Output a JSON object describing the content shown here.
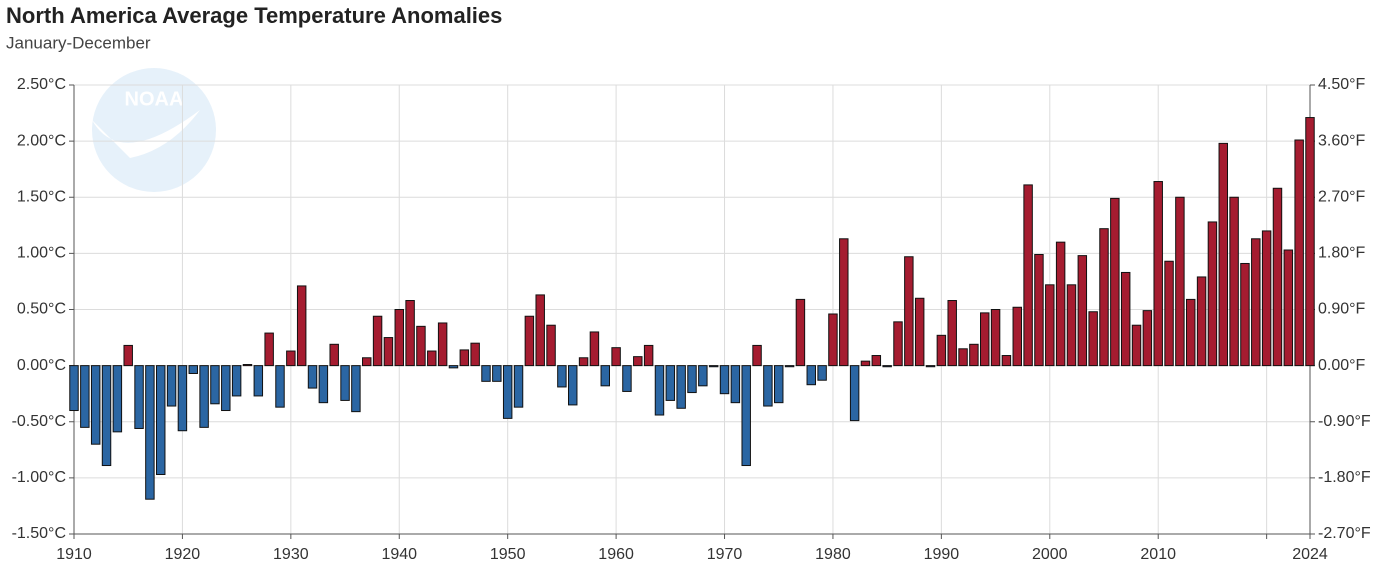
{
  "chart_data": {
    "type": "bar",
    "title": "North America Average Temperature Anomalies",
    "subtitle": "January-December",
    "logo_text": "NOAA",
    "x": [
      1910,
      1911,
      1912,
      1913,
      1914,
      1915,
      1916,
      1917,
      1918,
      1919,
      1920,
      1921,
      1922,
      1923,
      1924,
      1925,
      1926,
      1927,
      1928,
      1929,
      1930,
      1931,
      1932,
      1933,
      1934,
      1935,
      1936,
      1937,
      1938,
      1939,
      1940,
      1941,
      1942,
      1943,
      1944,
      1945,
      1946,
      1947,
      1948,
      1949,
      1950,
      1951,
      1952,
      1953,
      1954,
      1955,
      1956,
      1957,
      1958,
      1959,
      1960,
      1961,
      1962,
      1963,
      1964,
      1965,
      1966,
      1967,
      1968,
      1969,
      1970,
      1971,
      1972,
      1973,
      1974,
      1975,
      1976,
      1977,
      1978,
      1979,
      1980,
      1981,
      1982,
      1983,
      1984,
      1985,
      1986,
      1987,
      1988,
      1989,
      1990,
      1991,
      1992,
      1993,
      1994,
      1995,
      1996,
      1997,
      1998,
      1999,
      2000,
      2001,
      2002,
      2003,
      2004,
      2005,
      2006,
      2007,
      2008,
      2009,
      2010,
      2011,
      2012,
      2013,
      2014,
      2015,
      2016,
      2017,
      2018,
      2019,
      2020,
      2021,
      2022,
      2023,
      2024
    ],
    "values": [
      -0.4,
      -0.55,
      -0.7,
      -0.89,
      -0.59,
      0.18,
      -0.56,
      -1.19,
      -0.97,
      -0.36,
      -0.58,
      -0.07,
      -0.55,
      -0.34,
      -0.4,
      -0.27,
      0.01,
      -0.27,
      0.29,
      -0.37,
      0.13,
      0.71,
      -0.2,
      -0.33,
      0.19,
      -0.31,
      -0.41,
      0.07,
      0.44,
      0.25,
      0.5,
      0.58,
      0.35,
      0.13,
      0.38,
      -0.02,
      0.14,
      0.2,
      -0.14,
      -0.14,
      -0.47,
      -0.37,
      0.44,
      0.63,
      0.36,
      -0.19,
      -0.35,
      0.07,
      0.3,
      -0.18,
      0.16,
      -0.23,
      0.08,
      0.18,
      -0.44,
      -0.31,
      -0.38,
      -0.24,
      -0.18,
      -0.01,
      -0.25,
      -0.33,
      -0.89,
      0.18,
      -0.36,
      -0.33,
      -0.01,
      0.59,
      -0.17,
      -0.13,
      0.46,
      1.13,
      -0.49,
      0.04,
      0.09,
      -0.01,
      0.39,
      0.97,
      0.6,
      -0.01,
      0.27,
      0.58,
      0.15,
      0.19,
      0.47,
      0.5,
      0.09,
      0.52,
      1.61,
      0.99,
      0.72,
      1.1,
      0.72,
      0.98,
      0.48,
      1.22,
      1.49,
      0.83,
      0.36,
      0.49,
      1.64,
      0.93,
      1.5,
      0.59,
      0.79,
      1.28,
      1.98,
      1.5,
      0.91,
      1.13,
      1.2,
      1.58,
      1.03,
      2.01,
      2.21
    ],
    "positive_color": "#a51c30",
    "negative_color": "#2b66a3",
    "xlim": [
      1910,
      2024
    ],
    "xticks": [
      1910,
      1920,
      1930,
      1940,
      1950,
      1960,
      1970,
      1980,
      1990,
      2000,
      2010,
      2020,
      2024
    ],
    "xtick_labels_hidden": [
      2020
    ],
    "ylim": [
      -1.5,
      2.5
    ],
    "yticks": [
      {
        "value": -1.5,
        "label": "-1.50°C"
      },
      {
        "value": -1.0,
        "label": "-1.00°C"
      },
      {
        "value": -0.5,
        "label": "-0.50°C"
      },
      {
        "value": 0,
        "label": "0.00°C"
      },
      {
        "value": 0.5,
        "label": "0.50°C"
      },
      {
        "value": 1.0,
        "label": "1.00°C"
      },
      {
        "value": 1.5,
        "label": "1.50°C"
      },
      {
        "value": 2.0,
        "label": "2.00°C"
      },
      {
        "value": 2.5,
        "label": "2.50°C"
      }
    ],
    "y2lim": [
      -2.7,
      4.5
    ],
    "y2ticks": [
      {
        "value": -2.7,
        "label": "-2.70°F"
      },
      {
        "value": -1.8,
        "label": "-1.80°F"
      },
      {
        "value": -0.9,
        "label": "-0.90°F"
      },
      {
        "value": 0,
        "label": "0.00°F"
      },
      {
        "value": 0.9,
        "label": "0.90°F"
      },
      {
        "value": 1.8,
        "label": "1.80°F"
      },
      {
        "value": 2.7,
        "label": "2.70°F"
      },
      {
        "value": 3.6,
        "label": "3.60°F"
      },
      {
        "value": 4.5,
        "label": "4.50°F"
      }
    ],
    "grid": true
  }
}
